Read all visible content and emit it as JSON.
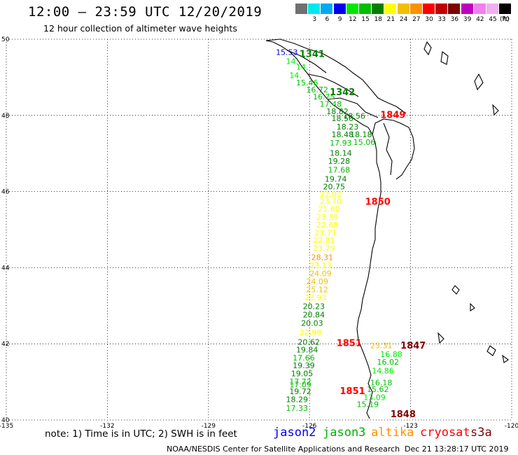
{
  "header": {
    "title": "12:00 – 23:59 UTC 12/20/2019",
    "subtitle": "12 hour collection of altimeter wave heights"
  },
  "legend": {
    "unit": "(ft)",
    "bins": [
      {
        "label": "",
        "color": "#707070"
      },
      {
        "label": "3",
        "color": "#00e8f0"
      },
      {
        "label": "6",
        "color": "#00aaf0"
      },
      {
        "label": "9",
        "color": "#0000f0"
      },
      {
        "label": "12",
        "color": "#00e800"
      },
      {
        "label": "15",
        "color": "#00c000"
      },
      {
        "label": "18",
        "color": "#008000"
      },
      {
        "label": "21",
        "color": "#ffff00"
      },
      {
        "label": "24",
        "color": "#f0c000"
      },
      {
        "label": "27",
        "color": "#ff9000"
      },
      {
        "label": "30",
        "color": "#ff0000"
      },
      {
        "label": "33",
        "color": "#c00000"
      },
      {
        "label": "36",
        "color": "#800000"
      },
      {
        "label": "39",
        "color": "#c000c0"
      },
      {
        "label": "42",
        "color": "#f080f0"
      },
      {
        "label": "45",
        "color": "#f0b0f0"
      },
      {
        "label": "70",
        "color": "#000000"
      }
    ]
  },
  "note": "note: 1) Time is in UTC; 2) SWH is in feet",
  "satellites": [
    {
      "name": "jason2",
      "color": "#0000f0"
    },
    {
      "name": "jason3",
      "color": "#00b000"
    },
    {
      "name": "altika",
      "color": "#ff9000"
    },
    {
      "name": "cryosat",
      "color": "#ff0000"
    },
    {
      "name": "s3a",
      "color": "#800000"
    }
  ],
  "footer": {
    "center": "NOAA/NESDIS Center for Satellite Applications and Research",
    "timestamp": "Dec 21 13:28:17 UTC 2019"
  },
  "chart_data": {
    "type": "scatter",
    "title": "12:00 – 23:59 UTC 12/20/2019",
    "subtitle": "12 hour collection of altimeter wave heights",
    "xlim": [
      -135,
      -120
    ],
    "ylim": [
      40,
      50
    ],
    "x_ticks": [
      -135,
      -132,
      -129,
      -126,
      -123,
      -120
    ],
    "x_tick_labels": [
      "-135",
      "-132",
      "-129",
      "-126",
      "-123",
      "-120"
    ],
    "y_ticks": [
      40,
      42,
      44,
      46,
      48,
      50
    ],
    "y_tick_labels": [
      "40",
      "42",
      "44",
      "46",
      "48",
      "50"
    ],
    "grid": true,
    "pass_times": [
      {
        "label": "1341",
        "lon": -126.3,
        "lat": 49.62,
        "color": "#008000"
      },
      {
        "label": "1342",
        "lon": -125.4,
        "lat": 48.62,
        "color": "#008000"
      },
      {
        "label": "1849",
        "lon": -123.9,
        "lat": 48.02,
        "color": "#ff0000"
      },
      {
        "label": "1850",
        "lon": -124.35,
        "lat": 45.74,
        "color": "#ff0000"
      },
      {
        "label": "1851",
        "lon": -125.2,
        "lat": 42.03,
        "color": "#ff0000"
      },
      {
        "label": "1847",
        "lon": -123.3,
        "lat": 41.97,
        "color": "#800000"
      },
      {
        "label": "1851",
        "lon": -125.1,
        "lat": 40.77,
        "color": "#ff0000"
      },
      {
        "label": "1848",
        "lon": -123.6,
        "lat": 40.17,
        "color": "#800000"
      }
    ],
    "wave_heights": [
      {
        "v": "15.53",
        "lon": -127.0,
        "lat": 49.66,
        "color": "#0000f0"
      },
      {
        "v": "14.",
        "lon": -126.7,
        "lat": 49.42,
        "color": "#00e800"
      },
      {
        "v": "14.",
        "lon": -126.4,
        "lat": 49.27,
        "color": "#00e800"
      },
      {
        "v": "14.",
        "lon": -126.6,
        "lat": 49.05,
        "color": "#00e800"
      },
      {
        "v": "15.46",
        "lon": -126.4,
        "lat": 48.86,
        "color": "#00c000"
      },
      {
        "v": "16.72",
        "lon": -126.1,
        "lat": 48.68,
        "color": "#00c000"
      },
      {
        "v": "16.75",
        "lon": -125.9,
        "lat": 48.49,
        "color": "#00c000"
      },
      {
        "v": "17.48",
        "lon": -125.7,
        "lat": 48.3,
        "color": "#00c000"
      },
      {
        "v": "18.82",
        "lon": -125.5,
        "lat": 48.11,
        "color": "#008000"
      },
      {
        "v": "18.56",
        "lon": -125.0,
        "lat": 47.99,
        "color": "#008000"
      },
      {
        "v": "18.50",
        "lon": -125.35,
        "lat": 47.92,
        "color": "#008000"
      },
      {
        "v": "18.23",
        "lon": -125.2,
        "lat": 47.7,
        "color": "#008000"
      },
      {
        "v": "18.48",
        "lon": -125.35,
        "lat": 47.5,
        "color": "#008000"
      },
      {
        "v": "18.18",
        "lon": -124.8,
        "lat": 47.5,
        "color": "#008000"
      },
      {
        "v": "17.93",
        "lon": -125.4,
        "lat": 47.28,
        "color": "#00c000"
      },
      {
        "v": "15.06",
        "lon": -124.7,
        "lat": 47.3,
        "color": "#00c000"
      },
      {
        "v": "18.14",
        "lon": -125.4,
        "lat": 47.01,
        "color": "#008000"
      },
      {
        "v": "19.28",
        "lon": -125.45,
        "lat": 46.8,
        "color": "#008000"
      },
      {
        "v": "17.68",
        "lon": -125.45,
        "lat": 46.57,
        "color": "#00c000"
      },
      {
        "v": "19.74",
        "lon": -125.55,
        "lat": 46.33,
        "color": "#008000"
      },
      {
        "v": "20.75",
        "lon": -125.6,
        "lat": 46.13,
        "color": "#008000"
      },
      {
        "v": "22.02",
        "lon": -125.7,
        "lat": 45.93,
        "color": "#ffff00"
      },
      {
        "v": "23.70",
        "lon": -125.7,
        "lat": 45.74,
        "color": "#ffff00"
      },
      {
        "v": "21.60",
        "lon": -125.75,
        "lat": 45.54,
        "color": "#ffff00"
      },
      {
        "v": "23.39",
        "lon": -125.8,
        "lat": 45.33,
        "color": "#ffff00"
      },
      {
        "v": "22.68",
        "lon": -125.8,
        "lat": 45.13,
        "color": "#ffff00"
      },
      {
        "v": "23.71",
        "lon": -125.85,
        "lat": 44.92,
        "color": "#ffff00"
      },
      {
        "v": "22.81",
        "lon": -125.9,
        "lat": 44.72,
        "color": "#ffff00"
      },
      {
        "v": "23.79",
        "lon": -125.9,
        "lat": 44.51,
        "color": "#ffff00"
      },
      {
        "v": "28.31",
        "lon": -125.95,
        "lat": 44.27,
        "color": "#ff9000"
      },
      {
        "v": "23.13",
        "lon": -126.0,
        "lat": 44.06,
        "color": "#ffff00"
      },
      {
        "v": "24.09",
        "lon": -126.0,
        "lat": 43.85,
        "color": "#f0c000"
      },
      {
        "v": "24.09",
        "lon": -126.1,
        "lat": 43.64,
        "color": "#f0c000"
      },
      {
        "v": "25.12",
        "lon": -126.1,
        "lat": 43.43,
        "color": "#f0c000"
      },
      {
        "v": "23.93",
        "lon": -126.15,
        "lat": 43.22,
        "color": "#ffff00"
      },
      {
        "v": "20.23",
        "lon": -126.2,
        "lat": 42.99,
        "color": "#008000"
      },
      {
        "v": "20.84",
        "lon": -126.2,
        "lat": 42.77,
        "color": "#008000"
      },
      {
        "v": "20.03",
        "lon": -126.25,
        "lat": 42.55,
        "color": "#008000"
      },
      {
        "v": "22.99",
        "lon": -126.3,
        "lat": 42.3,
        "color": "#ffff00"
      },
      {
        "v": "20.62",
        "lon": -126.35,
        "lat": 42.05,
        "color": "#008000"
      },
      {
        "v": "23.31",
        "lon": -124.2,
        "lat": 41.96,
        "color": "#f0c000"
      },
      {
        "v": "19.84",
        "lon": -126.4,
        "lat": 41.85,
        "color": "#008000"
      },
      {
        "v": "16.88",
        "lon": -123.9,
        "lat": 41.73,
        "color": "#00e800"
      },
      {
        "v": "17.66",
        "lon": -126.5,
        "lat": 41.64,
        "color": "#00c000"
      },
      {
        "v": "16.02",
        "lon": -124.0,
        "lat": 41.53,
        "color": "#00c000"
      },
      {
        "v": "19.39",
        "lon": -126.5,
        "lat": 41.43,
        "color": "#008000"
      },
      {
        "v": "14.86",
        "lon": -124.15,
        "lat": 41.3,
        "color": "#00e800"
      },
      {
        "v": "19.05",
        "lon": -126.55,
        "lat": 41.22,
        "color": "#008000"
      },
      {
        "v": "17.72",
        "lon": -126.6,
        "lat": 41.01,
        "color": "#00c000"
      },
      {
        "v": "16.18",
        "lon": -124.2,
        "lat": 40.98,
        "color": "#00c000"
      },
      {
        "v": "17.09",
        "lon": -126.6,
        "lat": 40.93,
        "color": "#00c000"
      },
      {
        "v": "15.62",
        "lon": -124.3,
        "lat": 40.81,
        "color": "#00c000"
      },
      {
        "v": "19.72",
        "lon": -126.6,
        "lat": 40.75,
        "color": "#008000"
      },
      {
        "v": "13.09",
        "lon": -124.4,
        "lat": 40.6,
        "color": "#00e800"
      },
      {
        "v": "18.29",
        "lon": -126.7,
        "lat": 40.54,
        "color": "#008000"
      },
      {
        "v": "15.19",
        "lon": -124.6,
        "lat": 40.41,
        "color": "#00c000"
      },
      {
        "v": "17.33",
        "lon": -126.7,
        "lat": 40.31,
        "color": "#00c000"
      }
    ]
  }
}
